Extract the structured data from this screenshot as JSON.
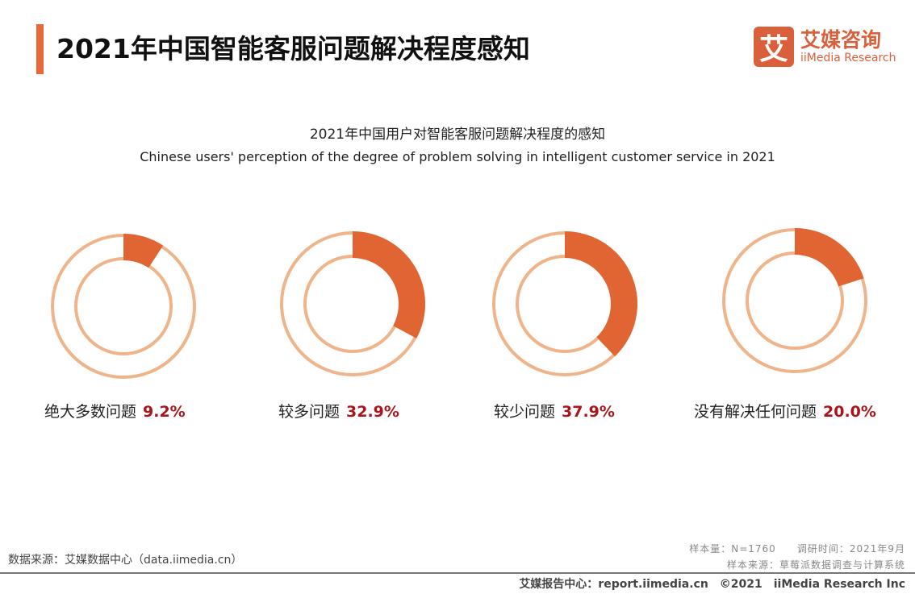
{
  "header": {
    "title": "2021年中国智能客服问题解决程度感知",
    "logo_mark": "艾",
    "logo_cn": "艾媒咨询",
    "logo_en": "iiMedia Research"
  },
  "chart_data": {
    "type": "donut",
    "title": "2021年中国用户对智能客服问题解决程度的感知",
    "subtitle": "Chinese users' perception of the degree of problem solving in intelligent customer service in 2021",
    "categories": [
      "绝大多数问题",
      "较多问题",
      "较少问题",
      "没有解决任何问题"
    ],
    "values": [
      9.2,
      32.9,
      37.9,
      20.0
    ],
    "value_labels": [
      "9.2%",
      "32.9%",
      "37.9%",
      "20.0%"
    ],
    "colors": {
      "fill": "#e06532",
      "ring": "#efb48a",
      "value_text": "#a8161b"
    }
  },
  "footer": {
    "source": "数据来源：艾媒数据中心（data.iimedia.cn）",
    "sample": "样本量：N=1760　　调研时间：2021年9月",
    "sample_source": "样本来源：草莓派数据调查与计算系统",
    "copyright": "艾媒报告中心：report.iimedia.cn　©2021　iiMedia Research  Inc"
  }
}
